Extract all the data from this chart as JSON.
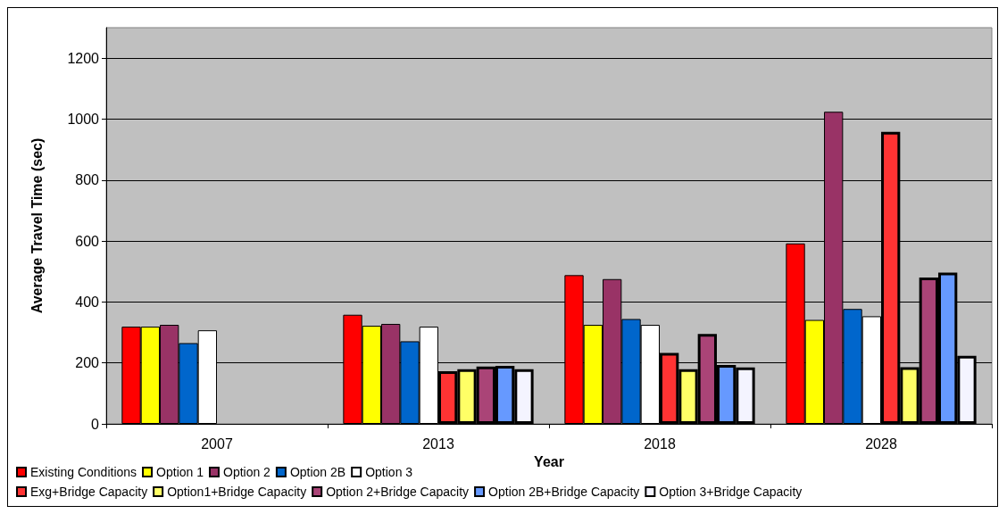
{
  "chart_data": {
    "type": "bar",
    "xlabel": "Year",
    "ylabel": "Average Travel Time (sec)",
    "categories": [
      "2007",
      "2013",
      "2018",
      "2028"
    ],
    "ylim": [
      0,
      1300
    ],
    "yticks": [
      0,
      200,
      400,
      600,
      800,
      1000,
      1200
    ],
    "grid": "y",
    "legend": "bottom",
    "series": [
      {
        "name": "Existing Conditions",
        "color": "#ff0000",
        "values": [
          319,
          358,
          488,
          592
        ]
      },
      {
        "name": "Option 1",
        "color": "#ffff00",
        "values": [
          319,
          322,
          325,
          341
        ]
      },
      {
        "name": "Option 2",
        "color": "#993366",
        "values": [
          325,
          328,
          475,
          1024
        ]
      },
      {
        "name": "Option 2B",
        "color": "#0066cc",
        "values": [
          265,
          271,
          344,
          377
        ]
      },
      {
        "name": "Option 3",
        "color": "#ffffff",
        "values": [
          307,
          319,
          325,
          353
        ]
      },
      {
        "name": "Exg+Bridge Capacity",
        "color": "#ff3333",
        "values": [
          null,
          173,
          233,
          958
        ]
      },
      {
        "name": "Option1+Bridge Capacity",
        "color": "#ffff66",
        "values": [
          null,
          179,
          179,
          186
        ]
      },
      {
        "name": "Option 2+Bridge Capacity",
        "color": "#aa4477",
        "values": [
          null,
          188,
          295,
          480
        ]
      },
      {
        "name": "Option 2B+Bridge Capacity",
        "color": "#6699ff",
        "values": [
          null,
          190,
          193,
          496
        ]
      },
      {
        "name": "Option 3+Bridge Capacity",
        "color": "#f4f4ff",
        "values": [
          null,
          179,
          185,
          223
        ]
      }
    ]
  }
}
